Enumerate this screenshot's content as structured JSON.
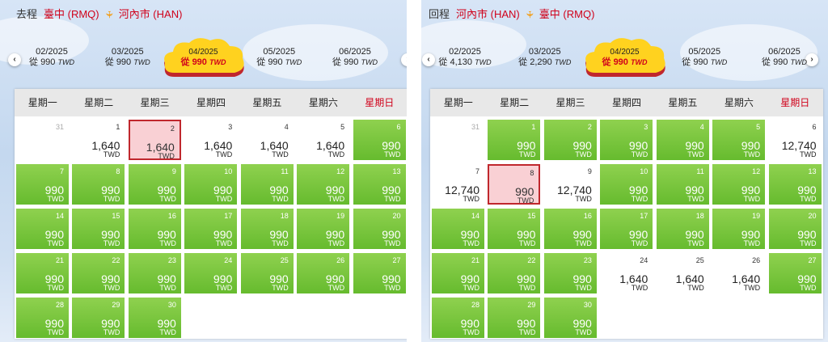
{
  "outbound": {
    "direction": "去程",
    "from": "臺中 (RMQ)",
    "to": "河內市 (HAN)",
    "months": [
      {
        "label": "02/2025",
        "prefix": "從",
        "price": "990",
        "currency": "TWD",
        "active": false
      },
      {
        "label": "03/2025",
        "prefix": "從",
        "price": "990",
        "currency": "TWD",
        "active": false
      },
      {
        "label": "04/2025",
        "prefix": "從",
        "price": "990",
        "currency": "TWD",
        "active": true
      },
      {
        "label": "05/2025",
        "prefix": "從",
        "price": "990",
        "currency": "TWD",
        "active": false
      },
      {
        "label": "06/2025",
        "prefix": "從",
        "price": "990",
        "currency": "TWD",
        "active": false
      }
    ],
    "weekdays": [
      "星期一",
      "星期二",
      "星期三",
      "星期四",
      "星期五",
      "星期六",
      "星期日"
    ],
    "cells": [
      {
        "day": "31",
        "price": "",
        "currency": "",
        "type": "empty"
      },
      {
        "day": "1",
        "price": "1,640",
        "currency": "TWD",
        "type": "w"
      },
      {
        "day": "2",
        "price": "1,640",
        "currency": "TWD",
        "type": "sel"
      },
      {
        "day": "3",
        "price": "1,640",
        "currency": "TWD",
        "type": "w"
      },
      {
        "day": "4",
        "price": "1,640",
        "currency": "TWD",
        "type": "w"
      },
      {
        "day": "5",
        "price": "1,640",
        "currency": "TWD",
        "type": "w"
      },
      {
        "day": "6",
        "price": "990",
        "currency": "TWD",
        "type": "g"
      },
      {
        "day": "7",
        "price": "990",
        "currency": "TWD",
        "type": "g"
      },
      {
        "day": "8",
        "price": "990",
        "currency": "TWD",
        "type": "g"
      },
      {
        "day": "9",
        "price": "990",
        "currency": "TWD",
        "type": "g"
      },
      {
        "day": "10",
        "price": "990",
        "currency": "TWD",
        "type": "g"
      },
      {
        "day": "11",
        "price": "990",
        "currency": "TWD",
        "type": "g"
      },
      {
        "day": "12",
        "price": "990",
        "currency": "TWD",
        "type": "g"
      },
      {
        "day": "13",
        "price": "990",
        "currency": "TWD",
        "type": "g"
      },
      {
        "day": "14",
        "price": "990",
        "currency": "TWD",
        "type": "g"
      },
      {
        "day": "15",
        "price": "990",
        "currency": "TWD",
        "type": "g"
      },
      {
        "day": "16",
        "price": "990",
        "currency": "TWD",
        "type": "g"
      },
      {
        "day": "17",
        "price": "990",
        "currency": "TWD",
        "type": "g"
      },
      {
        "day": "18",
        "price": "990",
        "currency": "TWD",
        "type": "g"
      },
      {
        "day": "19",
        "price": "990",
        "currency": "TWD",
        "type": "g"
      },
      {
        "day": "20",
        "price": "990",
        "currency": "TWD",
        "type": "g"
      },
      {
        "day": "21",
        "price": "990",
        "currency": "TWD",
        "type": "g"
      },
      {
        "day": "22",
        "price": "990",
        "currency": "TWD",
        "type": "g"
      },
      {
        "day": "23",
        "price": "990",
        "currency": "TWD",
        "type": "g"
      },
      {
        "day": "24",
        "price": "990",
        "currency": "TWD",
        "type": "g"
      },
      {
        "day": "25",
        "price": "990",
        "currency": "TWD",
        "type": "g"
      },
      {
        "day": "26",
        "price": "990",
        "currency": "TWD",
        "type": "g"
      },
      {
        "day": "27",
        "price": "990",
        "currency": "TWD",
        "type": "g"
      },
      {
        "day": "28",
        "price": "990",
        "currency": "TWD",
        "type": "g"
      },
      {
        "day": "29",
        "price": "990",
        "currency": "TWD",
        "type": "g"
      },
      {
        "day": "30",
        "price": "990",
        "currency": "TWD",
        "type": "g"
      }
    ]
  },
  "inbound": {
    "direction": "回程",
    "from": "河內市 (HAN)",
    "to": "臺中 (RMQ)",
    "months": [
      {
        "label": "02/2025",
        "prefix": "從",
        "price": "4,130",
        "currency": "TWD",
        "active": false
      },
      {
        "label": "03/2025",
        "prefix": "從",
        "price": "2,290",
        "currency": "TWD",
        "active": false
      },
      {
        "label": "04/2025",
        "prefix": "從",
        "price": "990",
        "currency": "TWD",
        "active": true
      },
      {
        "label": "05/2025",
        "prefix": "從",
        "price": "990",
        "currency": "TWD",
        "active": false
      },
      {
        "label": "06/2025",
        "prefix": "從",
        "price": "990",
        "currency": "TWD",
        "active": false
      }
    ],
    "weekdays": [
      "星期一",
      "星期二",
      "星期三",
      "星期四",
      "星期五",
      "星期六",
      "星期日"
    ],
    "cells": [
      {
        "day": "31",
        "price": "",
        "currency": "",
        "type": "empty"
      },
      {
        "day": "1",
        "price": "990",
        "currency": "TWD",
        "type": "g"
      },
      {
        "day": "2",
        "price": "990",
        "currency": "TWD",
        "type": "g"
      },
      {
        "day": "3",
        "price": "990",
        "currency": "TWD",
        "type": "g"
      },
      {
        "day": "4",
        "price": "990",
        "currency": "TWD",
        "type": "g"
      },
      {
        "day": "5",
        "price": "990",
        "currency": "TWD",
        "type": "g"
      },
      {
        "day": "6",
        "price": "12,740",
        "currency": "TWD",
        "type": "w"
      },
      {
        "day": "7",
        "price": "12,740",
        "currency": "TWD",
        "type": "w"
      },
      {
        "day": "8",
        "price": "990",
        "currency": "TWD",
        "type": "sel"
      },
      {
        "day": "9",
        "price": "12,740",
        "currency": "TWD",
        "type": "w"
      },
      {
        "day": "10",
        "price": "990",
        "currency": "TWD",
        "type": "g"
      },
      {
        "day": "11",
        "price": "990",
        "currency": "TWD",
        "type": "g"
      },
      {
        "day": "12",
        "price": "990",
        "currency": "TWD",
        "type": "g"
      },
      {
        "day": "13",
        "price": "990",
        "currency": "TWD",
        "type": "g"
      },
      {
        "day": "14",
        "price": "990",
        "currency": "TWD",
        "type": "g"
      },
      {
        "day": "15",
        "price": "990",
        "currency": "TWD",
        "type": "g"
      },
      {
        "day": "16",
        "price": "990",
        "currency": "TWD",
        "type": "g"
      },
      {
        "day": "17",
        "price": "990",
        "currency": "TWD",
        "type": "g"
      },
      {
        "day": "18",
        "price": "990",
        "currency": "TWD",
        "type": "g"
      },
      {
        "day": "19",
        "price": "990",
        "currency": "TWD",
        "type": "g"
      },
      {
        "day": "20",
        "price": "990",
        "currency": "TWD",
        "type": "g"
      },
      {
        "day": "21",
        "price": "990",
        "currency": "TWD",
        "type": "g"
      },
      {
        "day": "22",
        "price": "990",
        "currency": "TWD",
        "type": "g"
      },
      {
        "day": "23",
        "price": "990",
        "currency": "TWD",
        "type": "g"
      },
      {
        "day": "24",
        "price": "1,640",
        "currency": "TWD",
        "type": "w"
      },
      {
        "day": "25",
        "price": "1,640",
        "currency": "TWD",
        "type": "w"
      },
      {
        "day": "26",
        "price": "1,640",
        "currency": "TWD",
        "type": "w"
      },
      {
        "day": "27",
        "price": "990",
        "currency": "TWD",
        "type": "g"
      },
      {
        "day": "28",
        "price": "990",
        "currency": "TWD",
        "type": "g"
      },
      {
        "day": "29",
        "price": "990",
        "currency": "TWD",
        "type": "g"
      },
      {
        "day": "30",
        "price": "990",
        "currency": "TWD",
        "type": "g"
      }
    ]
  },
  "icons": {
    "prev": "chevron-left-icon",
    "next": "chevron-right-icon",
    "plane": "plane-icon"
  },
  "colors": {
    "accent_red": "#d0021b",
    "green_cell": "#72c23a",
    "selected_fill": "#f9d0d4",
    "selected_border": "#c0272d",
    "active_month_cloud": "#ffd21f"
  }
}
